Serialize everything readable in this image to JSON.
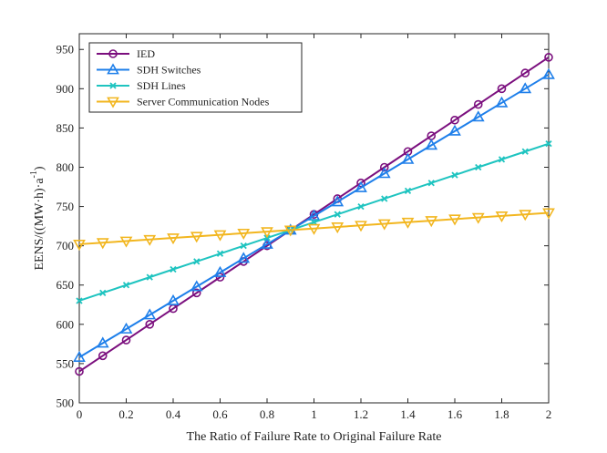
{
  "chart_data": {
    "type": "line",
    "title": "",
    "xlabel": "The Ratio of Failure Rate to Original Failure Rate",
    "ylabel": "EENS/((MW·h)·a",
    "ylabel_sup": "-1",
    "ylabel_close": ")",
    "xlim": [
      0,
      2
    ],
    "ylim": [
      500,
      970
    ],
    "xticks": [
      "0",
      "0.2",
      "0.4",
      "0.6",
      "0.8",
      "1",
      "1.2",
      "1.4",
      "1.6",
      "1.8",
      "2"
    ],
    "yticks": [
      "500",
      "550",
      "600",
      "650",
      "700",
      "750",
      "800",
      "850",
      "900",
      "950"
    ],
    "grid": false,
    "legend_position": "top-left",
    "x": [
      0,
      0.1,
      0.2,
      0.3,
      0.4,
      0.5,
      0.6,
      0.7,
      0.8,
      0.9,
      1.0,
      1.1,
      1.2,
      1.3,
      1.4,
      1.5,
      1.6,
      1.7,
      1.8,
      1.9,
      2.0
    ],
    "series": [
      {
        "name": "IED",
        "color": "#7B0F7E",
        "marker": "circle",
        "values": [
          540,
          560,
          580,
          600,
          620,
          640,
          660,
          680,
          700,
          720,
          740,
          760,
          780,
          800,
          820,
          840,
          860,
          880,
          900,
          920,
          940
        ]
      },
      {
        "name": "SDH Switches",
        "color": "#1E7FEA",
        "marker": "triangle-up",
        "values": [
          558,
          576,
          594,
          612,
          630,
          648,
          666,
          684,
          702,
          720,
          738,
          756,
          774,
          792,
          810,
          828,
          846,
          864,
          882,
          900,
          918
        ]
      },
      {
        "name": "SDH Lines",
        "color": "#1FC4C0",
        "marker": "x",
        "values": [
          630,
          640,
          650,
          660,
          670,
          680,
          690,
          700,
          710,
          720,
          730,
          740,
          750,
          760,
          770,
          780,
          790,
          800,
          810,
          820,
          830
        ]
      },
      {
        "name": "Server Communication Nodes",
        "color": "#F2B61F",
        "marker": "triangle-down",
        "values": [
          702,
          704,
          706,
          708,
          710,
          712,
          714,
          716,
          718,
          720,
          722,
          724,
          726,
          728,
          730,
          732,
          734,
          736,
          738,
          740,
          742
        ]
      }
    ]
  }
}
